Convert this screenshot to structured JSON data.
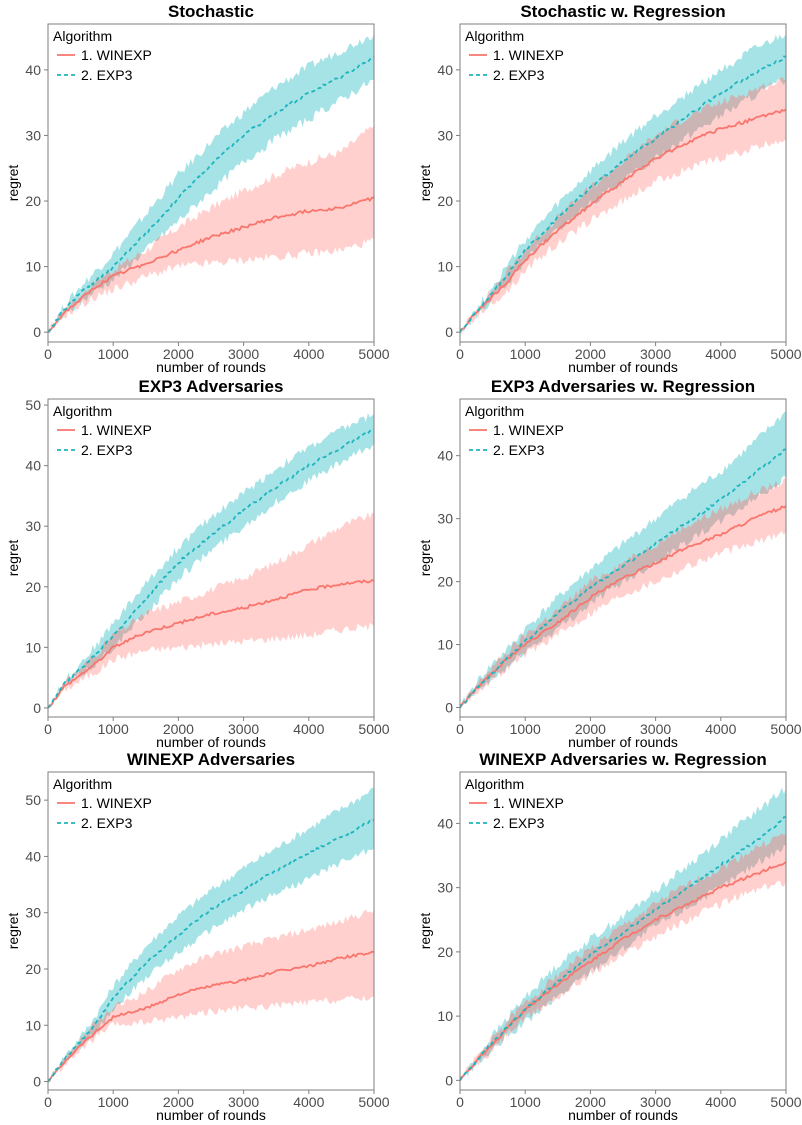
{
  "colors": {
    "winexp_line": "#F8766D",
    "winexp_band": "#FFC8C6",
    "exp3_line": "#1FB5BE",
    "exp3_band": "#A6E3E6",
    "overlap_tint": "#9a9a9a"
  },
  "chart_data": [
    {
      "type": "line",
      "title": "Stochastic",
      "xlabel": "number of rounds",
      "ylabel": "regret",
      "xlim": [
        0,
        5000
      ],
      "ylim": [
        -1.5,
        47
      ],
      "xticks": [
        0,
        1000,
        2000,
        3000,
        4000,
        5000
      ],
      "yticks": [
        0,
        10,
        20,
        30,
        40
      ],
      "legend": {
        "title": "Algorithm",
        "position": "top-left"
      },
      "x": [
        0,
        250,
        500,
        750,
        1000,
        1500,
        2000,
        2500,
        3000,
        3500,
        4000,
        4500,
        5000
      ],
      "series": [
        {
          "name": "1. WINEXP",
          "style": "solid",
          "mean": [
            0,
            3,
            5,
            7,
            8.5,
            10.5,
            12.5,
            14.5,
            16,
            17.5,
            18.5,
            19,
            20.5
          ],
          "lower": [
            0,
            2.5,
            4,
            5.5,
            6.5,
            8.5,
            10,
            10.5,
            11,
            11.5,
            12,
            12.5,
            14
          ],
          "upper": [
            0,
            3.5,
            5.5,
            8,
            9.5,
            12.5,
            16,
            19,
            21.5,
            24,
            26,
            27.5,
            31.5
          ]
        },
        {
          "name": "2. EXP3",
          "style": "dashed",
          "mean": [
            0,
            3.5,
            6,
            8,
            10,
            15,
            20.5,
            25.5,
            30,
            33.5,
            36.5,
            39,
            42
          ],
          "lower": [
            0,
            2.5,
            4.5,
            6.5,
            8,
            12.5,
            17,
            21.5,
            26,
            29.5,
            32.5,
            35.5,
            38.5
          ],
          "upper": [
            0,
            4,
            7,
            9.5,
            12,
            18,
            24,
            29,
            33.5,
            37.5,
            40.5,
            43,
            45.5
          ]
        }
      ]
    },
    {
      "type": "line",
      "title": "Stochastic w. Regression",
      "xlabel": "number of rounds",
      "ylabel": "regret",
      "xlim": [
        0,
        5000
      ],
      "ylim": [
        -1.5,
        47
      ],
      "xticks": [
        0,
        1000,
        2000,
        3000,
        4000,
        5000
      ],
      "yticks": [
        0,
        10,
        20,
        30,
        40
      ],
      "legend": {
        "title": "Algorithm",
        "position": "top-left"
      },
      "x": [
        0,
        250,
        500,
        750,
        1000,
        1500,
        2000,
        2500,
        3000,
        3500,
        4000,
        4500,
        5000
      ],
      "series": [
        {
          "name": "1. WINEXP",
          "style": "solid",
          "mean": [
            0,
            3,
            5.5,
            8,
            11,
            15.5,
            19.5,
            23,
            26.5,
            29,
            31,
            32.5,
            34
          ],
          "lower": [
            0,
            2.5,
            4.5,
            6.5,
            9.5,
            13.5,
            17,
            20,
            23,
            25,
            26.5,
            28,
            29.5
          ],
          "upper": [
            0,
            3.5,
            6.5,
            9.5,
            12.5,
            17.5,
            22,
            26,
            30,
            33,
            35,
            37,
            38.5
          ]
        },
        {
          "name": "2. EXP3",
          "style": "dashed",
          "mean": [
            0,
            3,
            6,
            9,
            12.5,
            17.5,
            22,
            26,
            29.5,
            33,
            36.5,
            39.5,
            42
          ],
          "lower": [
            0,
            2.5,
            5,
            7.5,
            11,
            15.5,
            19.5,
            23,
            26.5,
            30,
            33,
            36,
            38.5
          ],
          "upper": [
            0,
            3.5,
            7,
            10.5,
            14,
            19.5,
            24.5,
            29,
            33,
            36.5,
            40,
            43,
            45.5
          ]
        }
      ]
    },
    {
      "type": "line",
      "title": "EXP3 Adversaries",
      "xlabel": "number of rounds",
      "ylabel": "regret",
      "xlim": [
        0,
        5000
      ],
      "ylim": [
        -1.5,
        51
      ],
      "xticks": [
        0,
        1000,
        2000,
        3000,
        4000,
        5000
      ],
      "yticks": [
        0,
        10,
        20,
        30,
        40,
        50
      ],
      "legend": {
        "title": "Algorithm",
        "position": "top-left"
      },
      "x": [
        0,
        250,
        500,
        750,
        1000,
        1500,
        2000,
        2500,
        3000,
        3500,
        4000,
        4500,
        5000
      ],
      "series": [
        {
          "name": "1. WINEXP",
          "style": "solid",
          "mean": [
            0,
            3.5,
            5.5,
            7.5,
            10,
            12.5,
            14,
            15.5,
            16.5,
            18,
            19.5,
            20.5,
            21
          ],
          "lower": [
            0,
            3,
            4.5,
            6,
            8,
            9.5,
            10,
            10.5,
            11,
            11.5,
            12,
            13,
            13.5
          ],
          "upper": [
            0,
            4,
            6.5,
            9,
            12,
            15.5,
            17.5,
            19.5,
            21.5,
            24,
            27,
            30,
            32
          ]
        },
        {
          "name": "2. EXP3",
          "style": "dashed",
          "mean": [
            0,
            4,
            6.5,
            9,
            12,
            18,
            24,
            28.5,
            32.5,
            36.5,
            40,
            43,
            46
          ],
          "lower": [
            0,
            3.5,
            5.5,
            7.5,
            10,
            15.5,
            21.5,
            26,
            30,
            34,
            37.5,
            40.5,
            43.5
          ],
          "upper": [
            0,
            4.5,
            7.5,
            10.5,
            14,
            20.5,
            26.5,
            31.5,
            35.5,
            39.5,
            43,
            46,
            48.5
          ]
        }
      ]
    },
    {
      "type": "line",
      "title": "EXP3 Adversaries w. Regression",
      "xlabel": "number of rounds",
      "ylabel": "regret",
      "xlim": [
        0,
        5000
      ],
      "ylim": [
        -1.5,
        49
      ],
      "xticks": [
        0,
        1000,
        2000,
        3000,
        4000,
        5000
      ],
      "yticks": [
        0,
        10,
        20,
        30,
        40
      ],
      "legend": {
        "title": "Algorithm",
        "position": "top-left"
      },
      "x": [
        0,
        250,
        500,
        750,
        1000,
        1500,
        2000,
        2500,
        3000,
        3500,
        4000,
        4500,
        5000
      ],
      "series": [
        {
          "name": "1. WINEXP",
          "style": "solid",
          "mean": [
            0,
            3,
            5.5,
            8,
            10,
            13.5,
            17.5,
            20.5,
            23,
            25.5,
            27.5,
            30,
            32
          ],
          "lower": [
            0,
            2.5,
            4.5,
            6.5,
            8.5,
            11.5,
            15,
            18,
            20,
            22.5,
            24.5,
            26,
            28
          ],
          "upper": [
            0,
            3.5,
            6.5,
            9,
            11.5,
            15.5,
            20,
            23,
            26,
            29,
            31.5,
            34,
            36
          ]
        },
        {
          "name": "2. EXP3",
          "style": "dashed",
          "mean": [
            0,
            3,
            5.5,
            8,
            10.5,
            15,
            19,
            22.5,
            26,
            29.5,
            33,
            37,
            41
          ],
          "lower": [
            0,
            2.5,
            4.5,
            6.5,
            9,
            12.5,
            16.5,
            20,
            23,
            26.5,
            29.5,
            33,
            36.5
          ],
          "upper": [
            0,
            4,
            7,
            9.5,
            12.5,
            17.5,
            22,
            26,
            30,
            34,
            37.5,
            42,
            47
          ]
        }
      ]
    },
    {
      "type": "line",
      "title": "WINEXP Adversaries",
      "xlabel": "number of rounds",
      "ylabel": "regret",
      "xlim": [
        0,
        5000
      ],
      "ylim": [
        -1.5,
        55
      ],
      "xticks": [
        0,
        1000,
        2000,
        3000,
        4000,
        5000
      ],
      "yticks": [
        0,
        10,
        20,
        30,
        40,
        50
      ],
      "legend": {
        "title": "Algorithm",
        "position": "top-left"
      },
      "x": [
        0,
        250,
        500,
        750,
        1000,
        1500,
        2000,
        2500,
        3000,
        3500,
        4000,
        4500,
        5000
      ],
      "series": [
        {
          "name": "1. WINEXP",
          "style": "solid",
          "mean": [
            0,
            3.5,
            6.5,
            9,
            11.5,
            13,
            15.5,
            17,
            18,
            19.5,
            20.5,
            22,
            23
          ],
          "lower": [
            0,
            3,
            5.5,
            8,
            10,
            10.5,
            11.5,
            12.5,
            13,
            13.5,
            14,
            14.5,
            15
          ],
          "upper": [
            0,
            4,
            7.5,
            10.5,
            13,
            16,
            20,
            22.5,
            24,
            25.5,
            27,
            28.5,
            30.5
          ]
        },
        {
          "name": "2. EXP3",
          "style": "dashed",
          "mean": [
            0,
            4,
            7,
            10.5,
            15,
            21,
            26,
            30.5,
            34,
            37.5,
            40.5,
            43.5,
            46.5
          ],
          "lower": [
            0,
            3.5,
            6,
            9,
            13,
            18.5,
            23,
            27,
            30.5,
            33.5,
            36,
            39,
            41.5
          ],
          "upper": [
            0,
            4.5,
            8,
            12,
            17,
            24,
            29.5,
            34,
            38,
            41.5,
            45,
            48.5,
            52
          ]
        }
      ]
    },
    {
      "type": "line",
      "title": "WINEXP Adversaries w. Regression",
      "xlabel": "number of rounds",
      "ylabel": "regret",
      "xlim": [
        0,
        5000
      ],
      "ylim": [
        -1.5,
        48
      ],
      "xticks": [
        0,
        1000,
        2000,
        3000,
        4000,
        5000
      ],
      "yticks": [
        0,
        10,
        20,
        30,
        40
      ],
      "legend": {
        "title": "Algorithm",
        "position": "top-left"
      },
      "x": [
        0,
        250,
        500,
        750,
        1000,
        1500,
        2000,
        2500,
        3000,
        3500,
        4000,
        4500,
        5000
      ],
      "series": [
        {
          "name": "1. WINEXP",
          "style": "solid",
          "mean": [
            0,
            3,
            5.5,
            8.5,
            11,
            15,
            18.5,
            22,
            25,
            27.5,
            30,
            32,
            34
          ],
          "lower": [
            0,
            2.5,
            4.5,
            7.5,
            9.5,
            13,
            16.5,
            19.5,
            22.5,
            25,
            27.5,
            29.5,
            31
          ],
          "upper": [
            0,
            3.5,
            6.5,
            9.5,
            12,
            16.5,
            20.5,
            24,
            27.5,
            30.5,
            33,
            36,
            38.5
          ]
        },
        {
          "name": "2. EXP3",
          "style": "dashed",
          "mean": [
            0,
            3,
            6,
            8.5,
            11,
            15.5,
            19.5,
            23,
            26.5,
            30,
            33.5,
            37,
            41
          ],
          "lower": [
            0,
            2.5,
            4.5,
            7,
            9,
            13,
            17,
            20.5,
            24,
            27,
            30,
            33.5,
            36.5
          ],
          "upper": [
            0,
            3.5,
            7,
            10,
            13,
            18,
            22,
            25.5,
            29.5,
            33.5,
            37.5,
            41.5,
            45.5
          ]
        }
      ]
    }
  ]
}
